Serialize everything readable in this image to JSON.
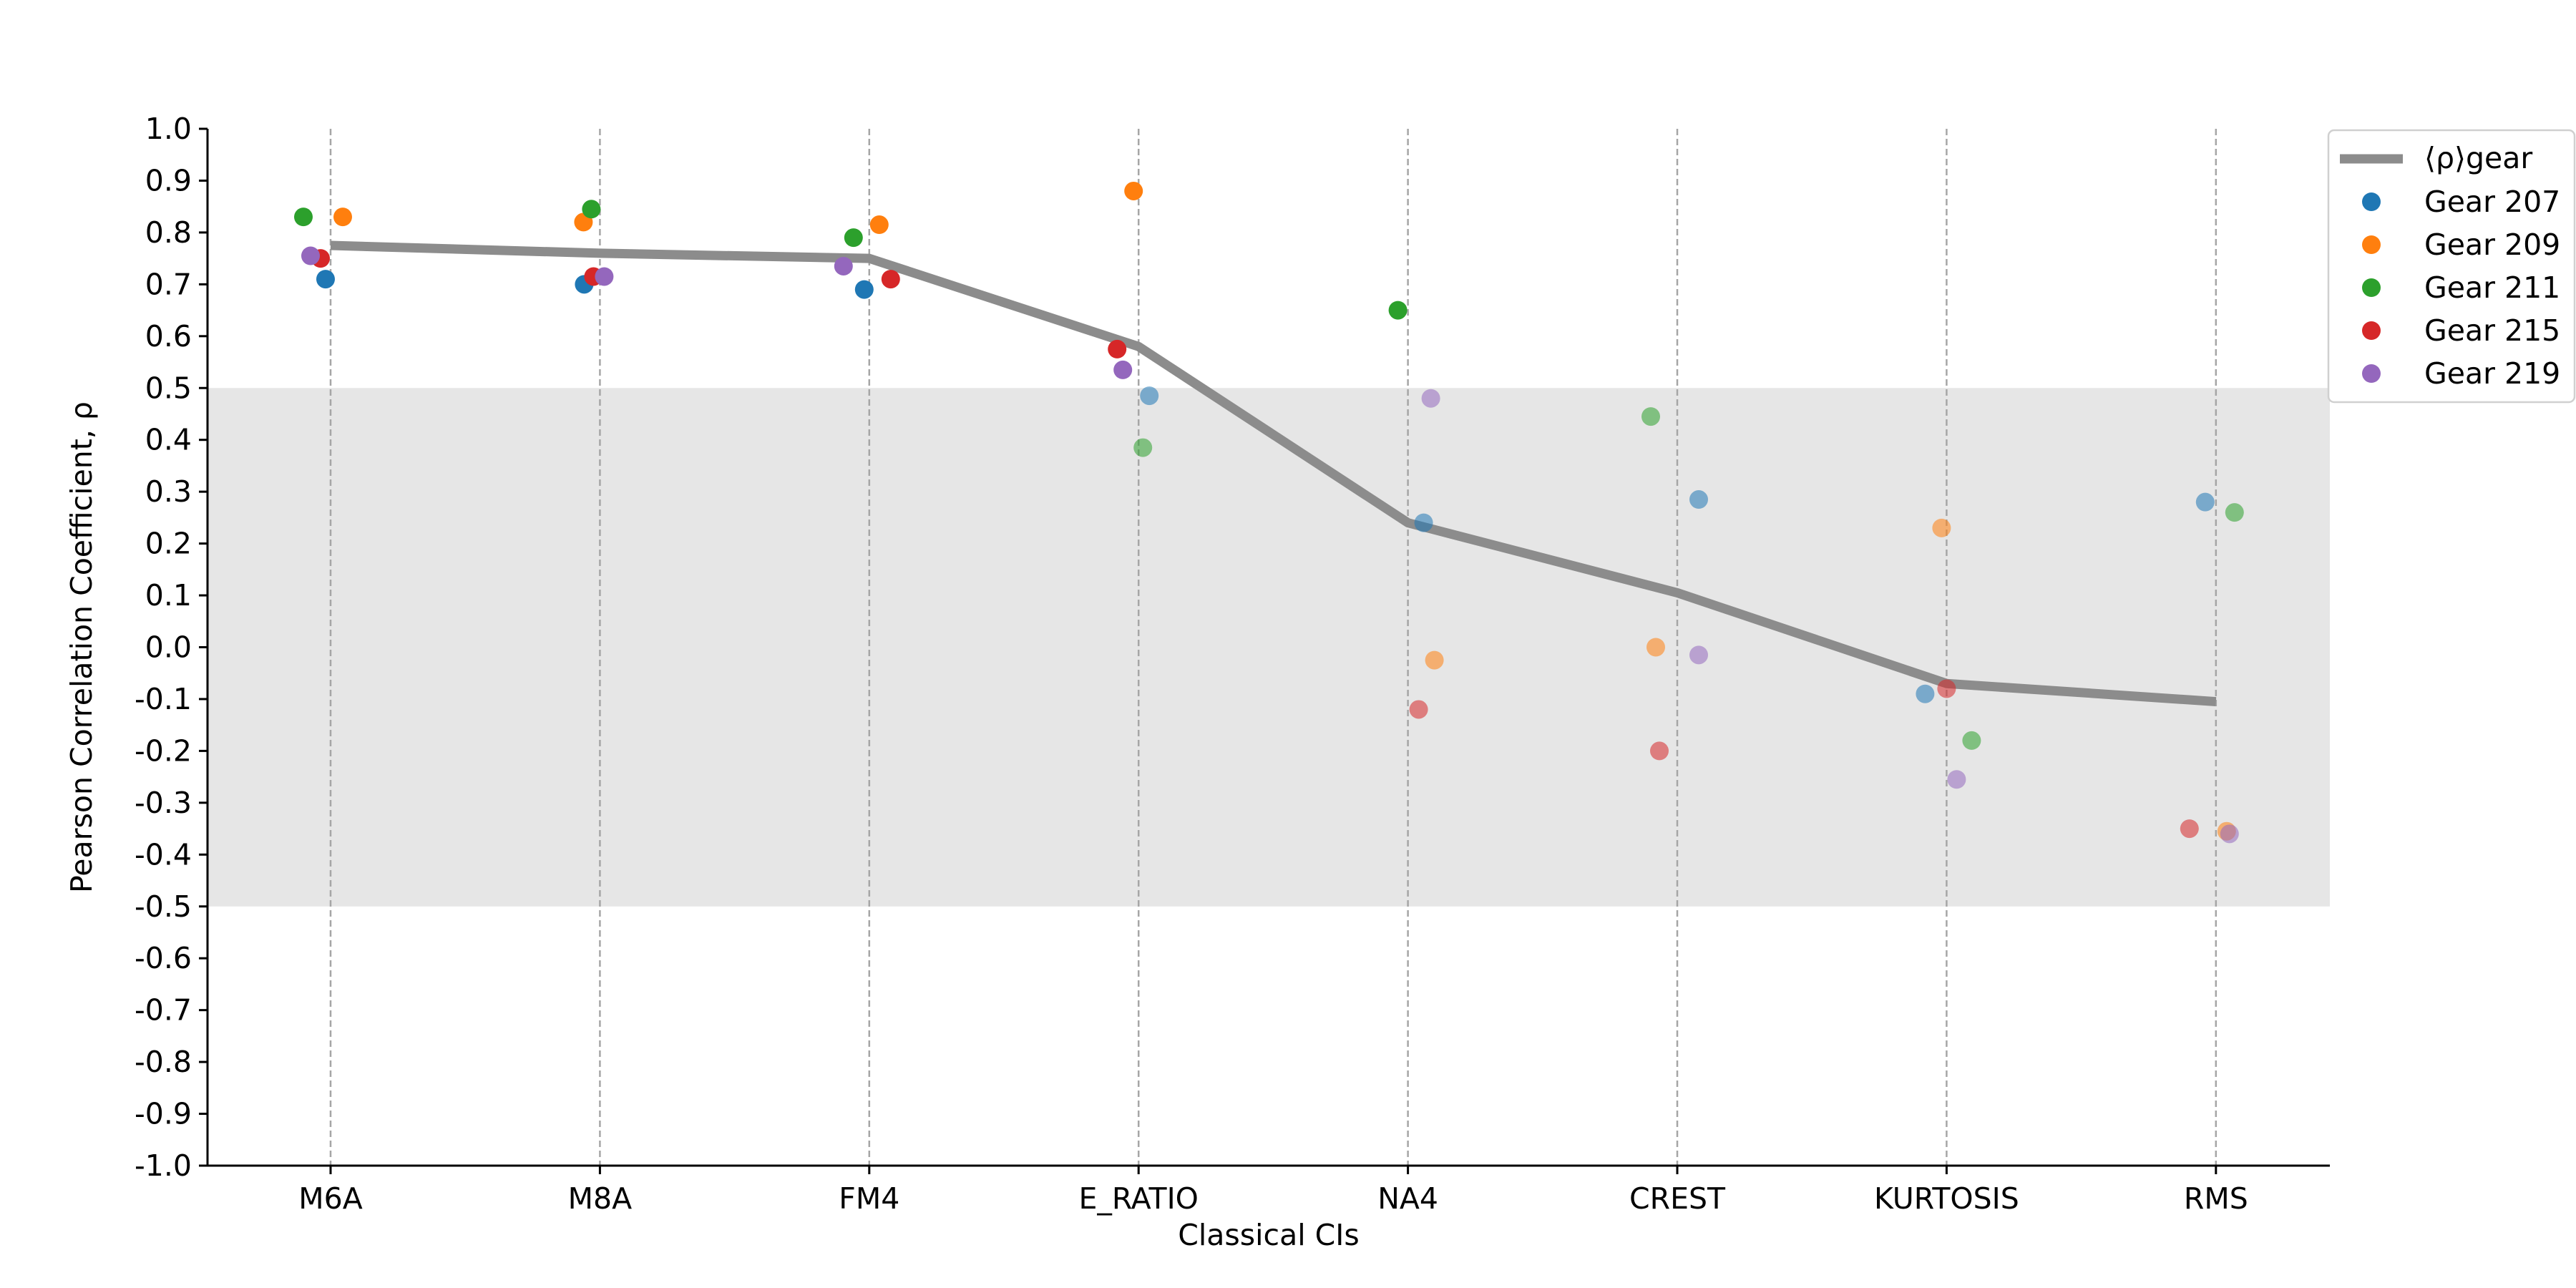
{
  "chart_data": {
    "type": "scatter",
    "xlabel": "Classical CIs",
    "ylabel": "Pearson Correlation Coefficient, ρ",
    "ylim": [
      -1.0,
      1.0
    ],
    "yticks": [
      "1.0",
      "0.9",
      "0.8",
      "0.7",
      "0.6",
      "0.5",
      "0.4",
      "0.3",
      "0.2",
      "0.1",
      "0.0",
      "-0.1",
      "-0.2",
      "-0.3",
      "-0.4",
      "-0.5",
      "-0.6",
      "-0.7",
      "-0.8",
      "-0.9",
      "-1.0"
    ],
    "categories": [
      "M6A",
      "M8A",
      "FM4",
      "E_RATIO",
      "NA4",
      "CREST",
      "KURTOSIS",
      "RMS"
    ],
    "shaded_band": [
      -0.5,
      0.5
    ],
    "band_color": "#e6e6e6",
    "grid": "vertical dashed lines at each category",
    "legend_position": "upper right, outside plot",
    "mean_line": {
      "name": "⟨ρ⟩gear",
      "color": "#8c8c8c",
      "values": [
        0.775,
        0.76,
        0.75,
        0.58,
        0.24,
        0.105,
        -0.07,
        -0.105
      ]
    },
    "series": [
      {
        "name": "Gear 207",
        "color": "#1f77b4",
        "values": [
          0.71,
          0.7,
          0.69,
          0.485,
          0.24,
          0.285,
          -0.09,
          0.28
        ]
      },
      {
        "name": "Gear 209",
        "color": "#ff7f0e",
        "values": [
          0.83,
          0.82,
          0.815,
          0.88,
          -0.025,
          0.0,
          0.23,
          -0.355
        ]
      },
      {
        "name": "Gear 211",
        "color": "#2ca02c",
        "values": [
          0.83,
          0.845,
          0.79,
          0.385,
          0.65,
          0.445,
          -0.18,
          0.26
        ]
      },
      {
        "name": "Gear 215",
        "color": "#d62728",
        "values": [
          0.75,
          0.715,
          0.71,
          0.575,
          -0.12,
          -0.2,
          -0.08,
          -0.35
        ]
      },
      {
        "name": "Gear 219",
        "color": "#9467bd",
        "values": [
          0.755,
          0.715,
          0.735,
          0.535,
          0.48,
          -0.015,
          -0.255,
          -0.36
        ]
      }
    ]
  }
}
